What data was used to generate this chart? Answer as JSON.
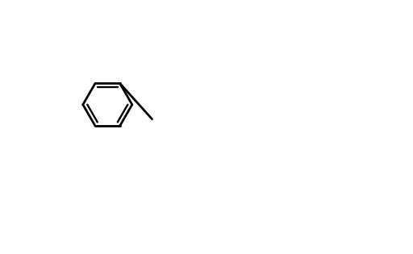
{
  "title": "",
  "background_color": "#ffffff",
  "line_color": "#000000",
  "line_width": 2.0,
  "font_size": 13,
  "fig_width": 5.12,
  "fig_height": 3.15,
  "dpi": 100
}
